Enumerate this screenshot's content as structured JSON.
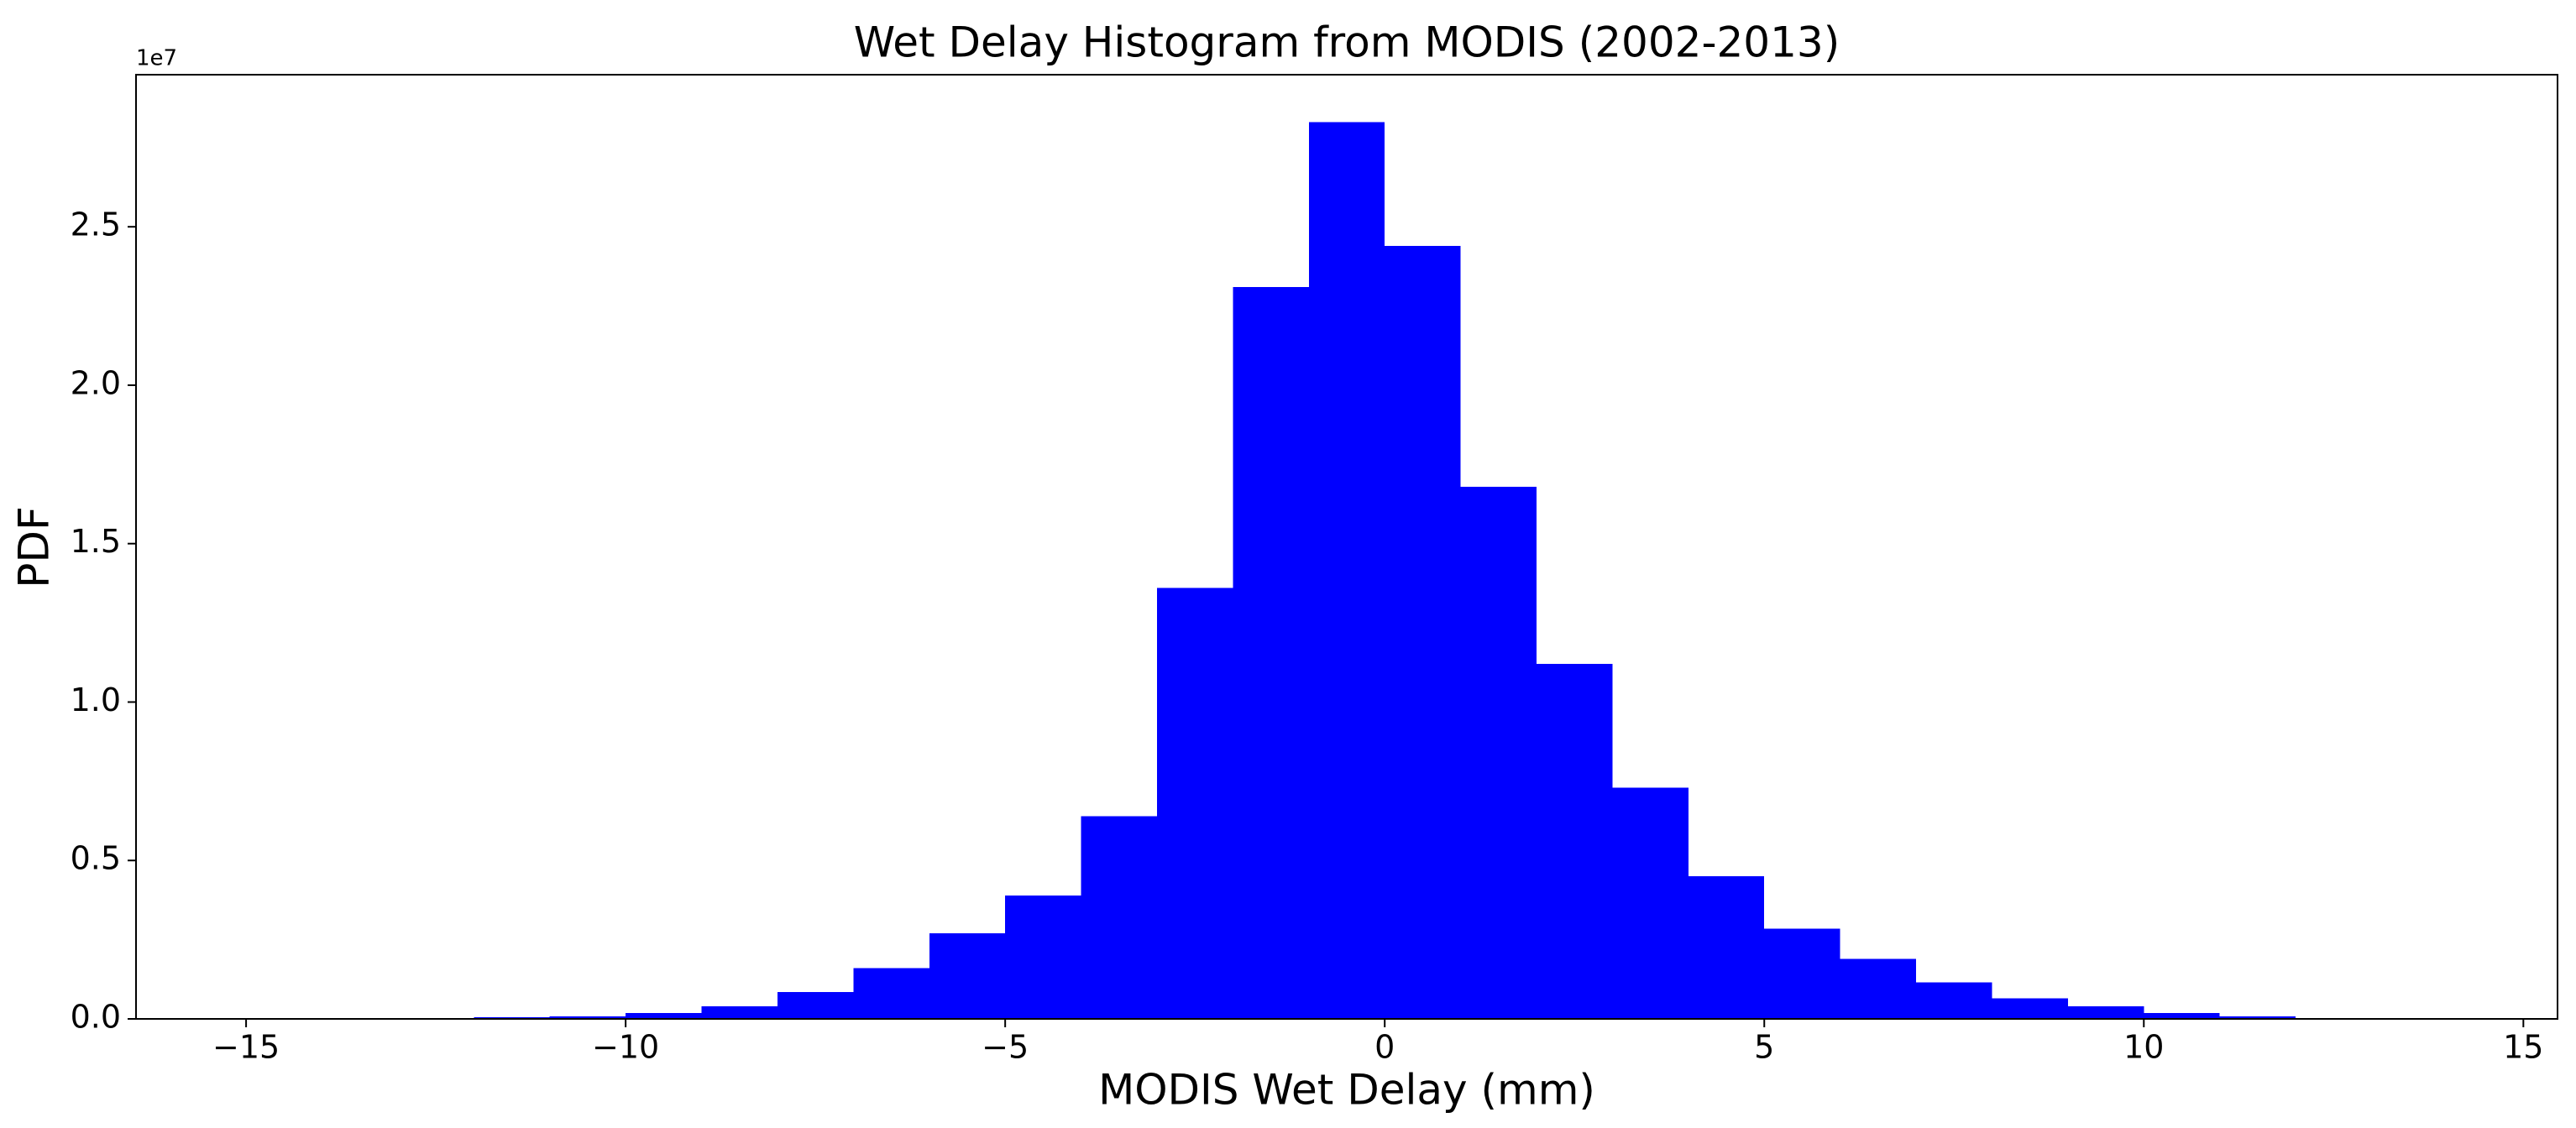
{
  "chart_data": {
    "type": "histogram",
    "title": "Wet Delay Histogram from MODIS (2002-2013)",
    "x_label": "MODIS Wet Delay (mm)",
    "y_label": "PDF",
    "y_offset_label": "1e7",
    "bins": [
      -12,
      -11,
      -10,
      -9,
      -8,
      -7,
      -6,
      -5,
      -4,
      -3,
      -2,
      -1,
      0,
      1,
      2,
      3,
      4,
      5,
      6,
      7,
      8,
      9,
      10,
      11,
      12
    ],
    "values": [
      0.005,
      0.008,
      0.018,
      0.04,
      0.085,
      0.16,
      0.27,
      0.39,
      0.64,
      1.36,
      2.31,
      2.83,
      2.44,
      1.68,
      1.12,
      0.73,
      0.45,
      0.285,
      0.19,
      0.115,
      0.065,
      0.04,
      0.018,
      0.008
    ],
    "color": "#0000ff",
    "xlim": [
      -16.45,
      15.45
    ],
    "xticks": [
      {
        "value": -15,
        "label": "−15"
      },
      {
        "value": -10,
        "label": "−10"
      },
      {
        "value": -5,
        "label": "−5"
      },
      0,
      5,
      10,
      15
    ],
    "ylim": [
      0,
      2.98
    ],
    "yticks": [
      {
        "value": 0,
        "label": "0.0"
      },
      0.5,
      {
        "value": 1,
        "label": "1.0"
      },
      1.5,
      {
        "value": 2,
        "label": "2.0"
      },
      2.5
    ]
  }
}
